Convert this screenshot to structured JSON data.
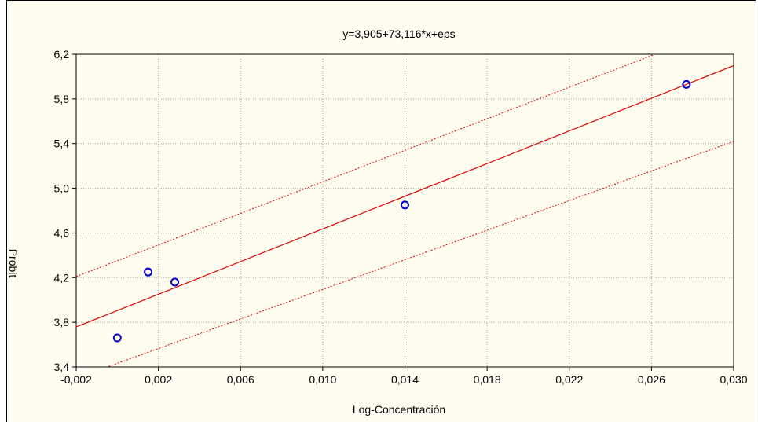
{
  "chart_data": {
    "type": "scatter",
    "title": "y=3,905+73,116*x+eps",
    "xlabel": "Log-Concentración",
    "ylabel": "Probit",
    "xlim": [
      -0.002,
      0.03
    ],
    "ylim": [
      3.4,
      6.2
    ],
    "x_ticks": [
      -0.002,
      0.002,
      0.006,
      0.01,
      0.014,
      0.018,
      0.022,
      0.026,
      0.03
    ],
    "x_tick_labels": [
      "-0,002",
      "0,002",
      "0,006",
      "0,010",
      "0,014",
      "0,018",
      "0,022",
      "0,026",
      "0,030"
    ],
    "y_ticks": [
      3.4,
      3.8,
      4.2,
      4.6,
      5.0,
      5.4,
      5.8,
      6.2
    ],
    "y_tick_labels": [
      "3,4",
      "3,8",
      "4,2",
      "4,6",
      "5,0",
      "5,4",
      "5,8",
      "6,2"
    ],
    "grid": true,
    "points": [
      {
        "x": 0.0,
        "y": 3.66
      },
      {
        "x": 0.0015,
        "y": 4.25
      },
      {
        "x": 0.0028,
        "y": 4.16
      },
      {
        "x": 0.014,
        "y": 4.85
      },
      {
        "x": 0.0277,
        "y": 5.93
      }
    ],
    "regression": {
      "intercept": 3.905,
      "slope": 73.116
    },
    "confidence_band": {
      "x": [
        -0.002,
        0.03
      ],
      "upper": [
        4.21,
        6.47
      ],
      "lower": [
        3.3,
        5.42
      ]
    },
    "colors": {
      "points": "#0000cc",
      "fit_line": "#dd0000",
      "band": "#dd0000",
      "grid": "#a0a0a0",
      "background": "#fffdf0"
    }
  }
}
